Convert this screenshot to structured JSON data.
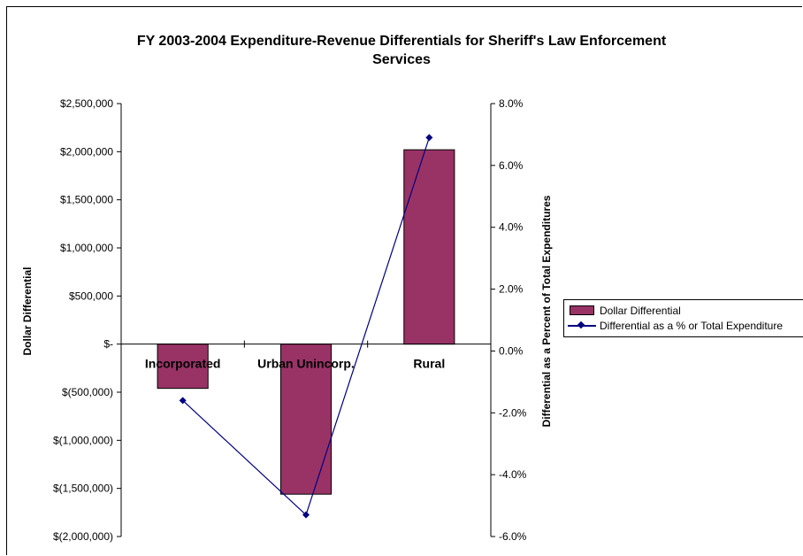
{
  "chart_data": {
    "type": "bar",
    "title": "FY 2003-2004 Expenditure-Revenue Differentials for Sheriff's Law Enforcement Services",
    "title_lines": [
      "FY 2003-2004 Expenditure-Revenue Differentials for Sheriff's Law Enforcement",
      "Services"
    ],
    "categories": [
      "Incorporated",
      "Urban Unincorp.",
      "Rural"
    ],
    "series": [
      {
        "name": "Dollar Differential",
        "type": "bar",
        "axis": "left",
        "color": "#993366",
        "values": [
          -460000,
          -1560000,
          2020000
        ]
      },
      {
        "name": "Differential as a % or Total Expenditure",
        "type": "line",
        "axis": "right",
        "color": "#000080",
        "values": [
          -1.6,
          -5.3,
          6.9
        ]
      }
    ],
    "ylabel": "Dollar Differential",
    "ylabel_right": "Differential as a Percent of Total Expenditures",
    "ylim": [
      -2000000,
      2500000
    ],
    "ylim_right": [
      -6.0,
      8.0
    ],
    "yticks_left": [
      "$2,500,000",
      "$2,000,000",
      "$1,500,000",
      "$1,000,000",
      "$500,000",
      "$-",
      "$(500,000)",
      "$(1,000,000)",
      "$(1,500,000)",
      "$(2,000,000)"
    ],
    "yticks_right": [
      "8.0%",
      "6.0%",
      "4.0%",
      "2.0%",
      "0.0%",
      "-2.0%",
      "-4.0%",
      "-6.0%"
    ],
    "grid": false,
    "legend_position": "right"
  }
}
